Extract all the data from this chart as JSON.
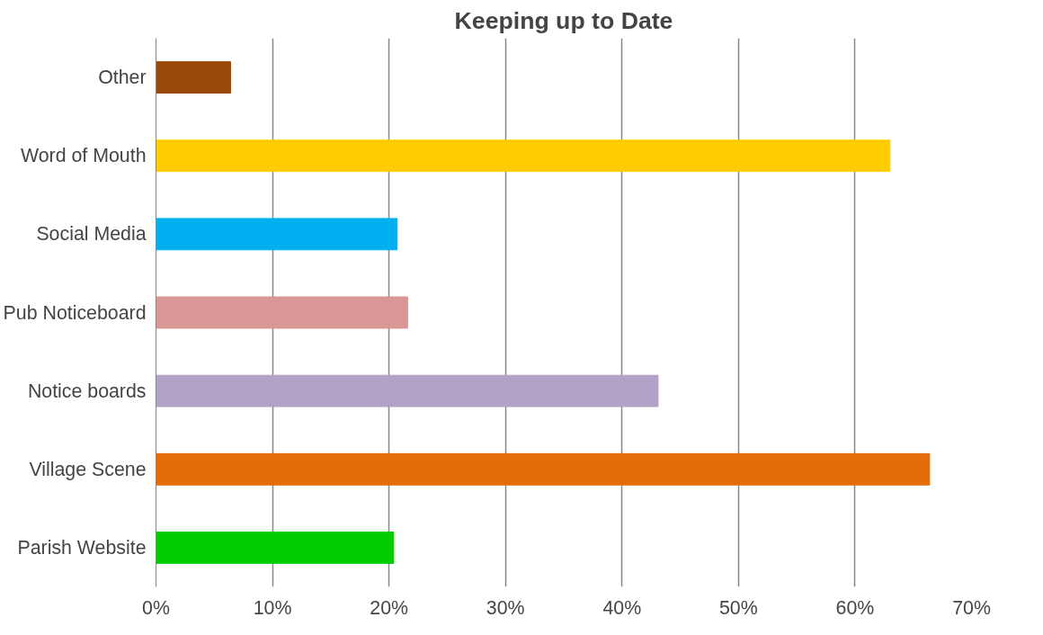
{
  "chart_data": {
    "type": "bar",
    "orientation": "horizontal",
    "title": "Keeping up to Date",
    "categories": [
      "Other",
      "Word of Mouth",
      "Social Media",
      "Pub Noticeboard",
      "Notice boards",
      "Village Scene",
      "Parish Website"
    ],
    "values": [
      6.4,
      63.0,
      20.7,
      21.6,
      43.1,
      66.4,
      20.4
    ],
    "colors": [
      "#984807",
      "#ffcc00",
      "#00b0f0",
      "#d99694",
      "#b3a2c7",
      "#e46c0a",
      "#00cc00"
    ],
    "xlim": [
      0,
      70
    ],
    "xticks": [
      {
        "value": 0,
        "label": "0%"
      },
      {
        "value": 10,
        "label": "10%"
      },
      {
        "value": 20,
        "label": "20%"
      },
      {
        "value": 30,
        "label": "30%"
      },
      {
        "value": 40,
        "label": "40%"
      },
      {
        "value": 50,
        "label": "50%"
      },
      {
        "value": 60,
        "label": "60%"
      },
      {
        "value": 70,
        "label": "70%"
      }
    ],
    "grid": "x"
  }
}
